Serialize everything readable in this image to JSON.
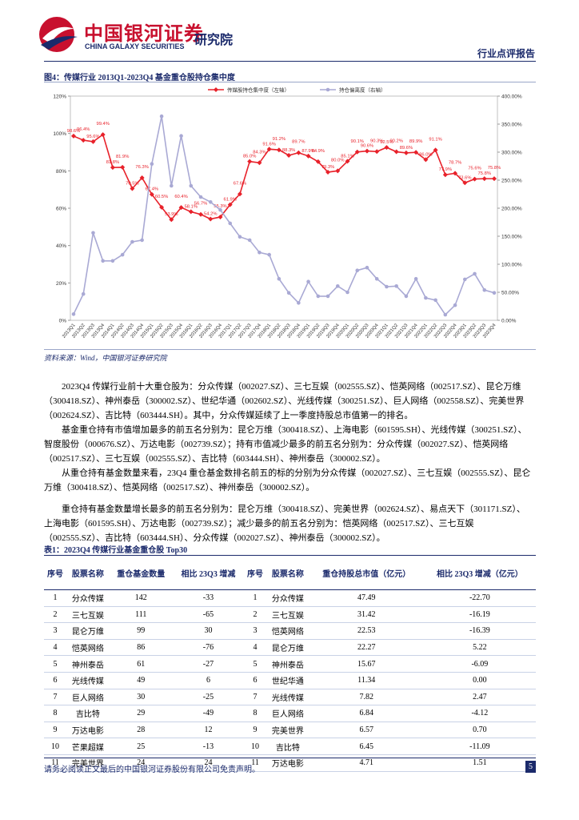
{
  "header": {
    "brand": "中国银河证券",
    "brand_en": "CHINA GALAXY SECURITIES",
    "institute": "研究院",
    "report_type": "行业点评报告"
  },
  "figure": {
    "title": "图4：传媒行业 2013Q1-2023Q4 基金重仓股持仓集中度",
    "source": "资料来源：Wind，中国银河证券研究院"
  },
  "chart_data": {
    "type": "line",
    "categories": [
      "2013Q1",
      "2013Q2",
      "2013Q3",
      "2013Q4",
      "2014Q1",
      "2014Q2",
      "2014Q3",
      "2014Q4",
      "2015Q1",
      "2015Q2",
      "2015Q3",
      "2015Q4",
      "2016Q1",
      "2016Q2",
      "2016Q3",
      "2016Q4",
      "2017Q1",
      "2017Q2",
      "2017Q3",
      "2017Q4",
      "2018Q1",
      "2018Q2",
      "2018Q3",
      "2018Q4",
      "2019Q1",
      "2019Q2",
      "2019Q3",
      "2019Q4",
      "2020Q1",
      "2020Q2",
      "2020Q3",
      "2020Q4",
      "2021Q1",
      "2021Q2",
      "2021Q3",
      "2021Q4",
      "2022Q1",
      "2022Q2",
      "2022Q3",
      "2022Q4",
      "2023Q1",
      "2023Q2",
      "2023Q3",
      "2023Q4"
    ],
    "series": [
      {
        "name": "传媒股持仓集中度（左轴）",
        "color": "#e8212a",
        "axis": "y",
        "values": [
          98.6,
          96.4,
          95.6,
          99.4,
          81.8,
          81.9,
          70.5,
          76.3,
          67.4,
          60.5,
          53.9,
          60.4,
          58.1,
          56.7,
          54.2,
          55.3,
          61.9,
          67.6,
          85.0,
          84.3,
          91.6,
          91.2,
          88.3,
          89.7,
          87.9,
          84.9,
          79.3,
          80.0,
          85.1,
          90.1,
          90.6,
          90.3,
          92.5,
          90.2,
          89.6,
          89.9,
          86.0,
          91.1,
          77.9,
          78.7,
          73.6,
          75.6,
          75.8,
          75.8
        ],
        "value_labels": [
          "98.6%",
          "96.4%",
          "95.6%",
          "99.4%",
          "81.8%",
          "81.9%",
          "70.5%",
          "76.3%",
          "67.4%",
          "60.5%",
          "53.9%",
          "60.4%",
          "58.1%",
          "56.7%",
          "54.2%",
          "55.3%",
          "61.9%",
          "67.6%",
          "85.0%",
          "84.3%",
          "91.6%",
          "91.2%",
          "88.3%",
          "89.7%",
          "87.9%",
          "84.9%",
          "79.3%",
          "80.0%",
          "85.1%",
          "90.1%",
          "90.6%",
          "90.3%",
          "92.5%",
          "90.2%",
          "89.6%",
          "89.9%",
          "86.0%",
          "91.1%",
          "77.9%",
          "78.7%",
          "73.6%",
          "75.6%",
          "75.8%",
          "75.8%"
        ]
      },
      {
        "name": "持仓偏离度（右轴）",
        "color": "#a9a9d4",
        "axis": "y2",
        "values": [
          11,
          47,
          156,
          106,
          106,
          117,
          140,
          143,
          279,
          364,
          240,
          329,
          240,
          220,
          211,
          197,
          173,
          149,
          143,
          121,
          117,
          74,
          49,
          31,
          69,
          43,
          43,
          61,
          50,
          89,
          94,
          74,
          60,
          61,
          43,
          74,
          40,
          36,
          10,
          27,
          73,
          83,
          54,
          49
        ]
      }
    ],
    "ylim": [
      0,
      120
    ],
    "yticks": [
      {
        "value": 0,
        "label": "0%"
      },
      {
        "value": 20,
        "label": "20%"
      },
      {
        "value": 40,
        "label": "40%"
      },
      {
        "value": 60,
        "label": "60%"
      },
      {
        "value": 80,
        "label": "80%"
      },
      {
        "value": 100,
        "label": "100%"
      },
      {
        "value": 120,
        "label": "120%"
      }
    ],
    "y2lim": [
      0,
      400
    ],
    "y2ticks": [
      {
        "value": 0,
        "label": "0.00%"
      },
      {
        "value": 50,
        "label": "50.00%"
      },
      {
        "value": 100,
        "label": "100.00%"
      },
      {
        "value": 150,
        "label": "150.00%"
      },
      {
        "value": 200,
        "label": "200.00%"
      },
      {
        "value": 250,
        "label": "250.00%"
      },
      {
        "value": 300,
        "label": "300.00%"
      },
      {
        "value": 350,
        "label": "350.00%"
      },
      {
        "value": 400,
        "label": "400.00%"
      }
    ],
    "legend": "top"
  },
  "paragraphs": [
    "2023Q4 传媒行业前十大重仓股为：分众传媒（002027.SZ）、三七互娱（002555.SZ）、恺英网络（002517.SZ）、昆仑万维（300418.SZ）、神州泰岳（300002.SZ）、世纪华通（002602.SZ）、光线传媒（300251.SZ）、巨人网络（002558.SZ）、完美世界（002624.SZ）、吉比特（603444.SH）。其中，分众传媒延续了上一季度持股总市值第一的排名。",
    "基金重仓持有市值增加最多的前五名分别为：昆仑万维（300418.SZ）、上海电影（601595.SH）、光线传媒（300251.SZ）、智度股份（000676.SZ）、万达电影（002739.SZ）；持有市值减少最多的前五名分别为：分众传媒（002027.SZ）、恺英网络（002517.SZ）、三七互娱（002555.SZ）、吉比特（603444.SH）、神州泰岳（300002.SZ）。",
    "从重仓持有基金数量来看，23Q4 重仓基金数排名前五的标的分别为分众传媒（002027.SZ）、三七互娱（002555.SZ）、昆仑万维（300418.SZ）、恺英网络（002517.SZ）、神州泰岳（300002.SZ）。",
    "重仓持有基金数量增长最多的前五名分别为：昆仑万维（300418.SZ）、完美世界（002624.SZ）、易点天下（301171.SZ）、上海电影（601595.SH）、万达电影（002739.SZ）；减少最多的前五名分别为：恺英网络（002517.SZ）、三七互娱（002555.SZ）、吉比特（603444.SH）、分众传媒（002027.SZ）、神州泰岳（300002.SZ）。"
  ],
  "table": {
    "title": "表1：2023Q4 传媒行业基金重仓股 Top30",
    "header": [
      "序号",
      "股票名称",
      "重仓基金数量",
      "相比 23Q3 增减",
      "序号",
      "股票名称",
      "重仓持股总市值（亿元）",
      "相比 23Q3 增减（亿元）"
    ],
    "rows": [
      [
        "1",
        "分众传媒",
        "142",
        "-33",
        "1",
        "分众传媒",
        "47.49",
        "-22.70"
      ],
      [
        "2",
        "三七互娱",
        "111",
        "-65",
        "2",
        "三七互娱",
        "31.42",
        "-16.19"
      ],
      [
        "3",
        "昆仑万维",
        "99",
        "30",
        "3",
        "恺英网络",
        "22.53",
        "-16.39"
      ],
      [
        "4",
        "恺英网络",
        "86",
        "-76",
        "4",
        "昆仑万维",
        "22.27",
        "5.22"
      ],
      [
        "5",
        "神州泰岳",
        "61",
        "-27",
        "5",
        "神州泰岳",
        "15.67",
        "-6.09"
      ],
      [
        "6",
        "光线传媒",
        "49",
        "6",
        "6",
        "世纪华通",
        "11.34",
        "0.00"
      ],
      [
        "7",
        "巨人网络",
        "30",
        "-25",
        "7",
        "光线传媒",
        "7.82",
        "2.47"
      ],
      [
        "8",
        "吉比特",
        "29",
        "-49",
        "8",
        "巨人网络",
        "6.84",
        "-4.12"
      ],
      [
        "9",
        "万达电影",
        "28",
        "12",
        "9",
        "完美世界",
        "6.57",
        "0.70"
      ],
      [
        "10",
        "芒果超媒",
        "25",
        "-13",
        "10",
        "吉比特",
        "6.45",
        "-11.09"
      ],
      [
        "11",
        "完美世界",
        "24",
        "24",
        "11",
        "万达电影",
        "4.71",
        "1.51"
      ]
    ]
  },
  "footer": {
    "disclaimer": "请务必阅读正文最后的中国银河证券股份有限公司免责声明。",
    "page": "5"
  }
}
